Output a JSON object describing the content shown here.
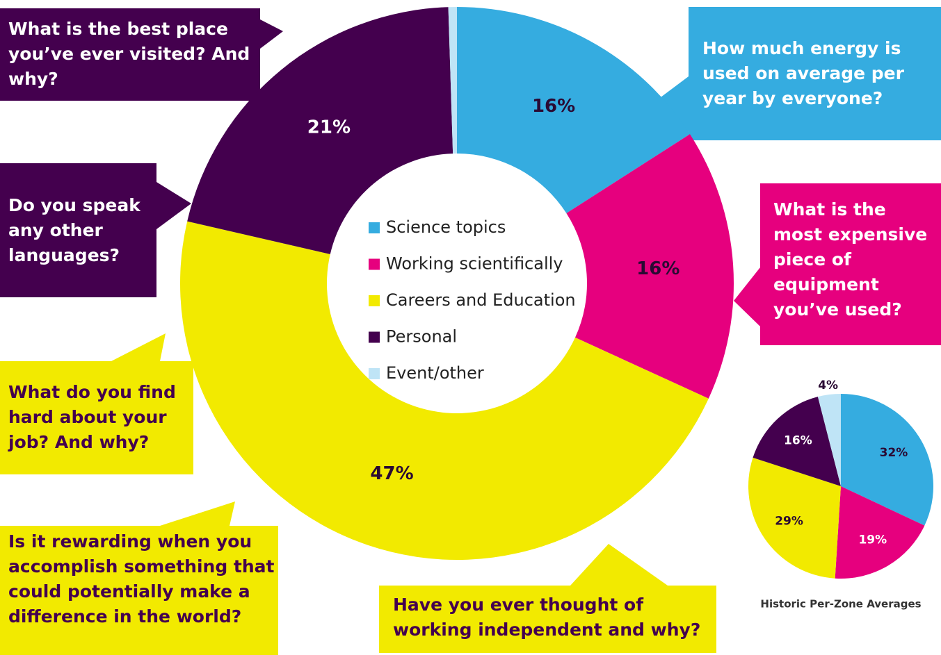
{
  "chart_data": [
    {
      "type": "donut",
      "categories": [
        "Science topics",
        "Working scientifically",
        "Careers and Education",
        "Personal",
        "Event/other"
      ],
      "values": [
        16,
        16,
        47,
        21,
        0.5
      ],
      "value_labels": [
        "16%",
        "16%",
        "47%",
        "21%",
        null
      ],
      "colors": [
        "#35ace0",
        "#e6007e",
        "#f2ea00",
        "#44004e",
        "#bfe4f6"
      ],
      "legend": "center"
    },
    {
      "type": "pie",
      "title": "Historic Per-Zone Averages",
      "values": [
        32,
        19,
        29,
        16,
        4
      ],
      "value_labels": [
        "32%",
        "19%",
        "29%",
        "16%",
        "4%"
      ],
      "colors": [
        "#35ace0",
        "#e6007e",
        "#f2ea00",
        "#44004e",
        "#bfe4f6"
      ]
    }
  ],
  "callouts": [
    {
      "text": "What is the best place you’ve ever visited? And why?"
    },
    {
      "text": "How much energy is used on average per year by everyone?"
    },
    {
      "text": "Do you speak any other languages?"
    },
    {
      "text": "What is the most expensive piece of equipment you’ve used?"
    },
    {
      "text": "What do you find hard about your job? And why?"
    },
    {
      "text": "Is it rewarding when you accomplish something that could potentially make a difference in the world?"
    },
    {
      "text": "Have you ever thought of working independent and why?"
    }
  ]
}
